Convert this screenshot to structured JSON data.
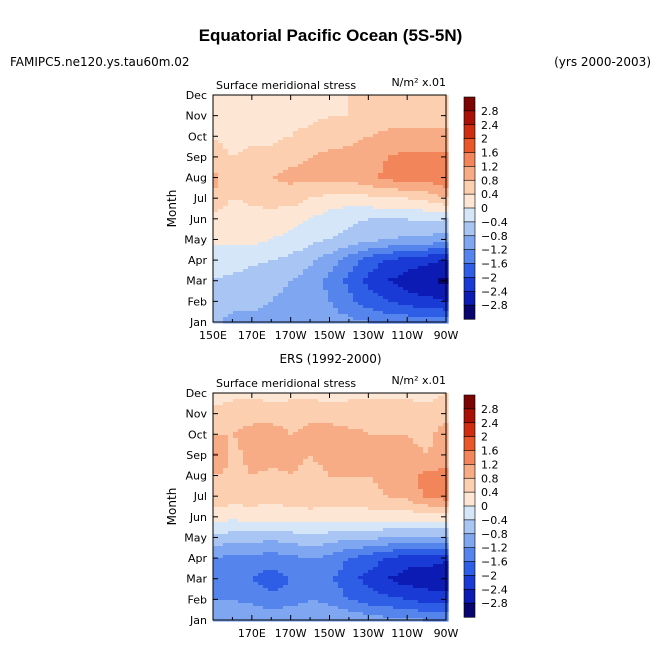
{
  "header": {
    "title": "Equatorial Pacific Ocean (5S-5N)",
    "run_name": "FAMIPC5.ne120.ys.tau60m.02",
    "year_range": "(yrs 2000-2003)"
  },
  "chart_data": [
    {
      "type": "heatmap",
      "panel_title": "",
      "left_label": "Surface meridional stress",
      "right_label": "N/m² x.01",
      "ylabel": "Month",
      "x_ticks": [
        "150E",
        "170E",
        "170W",
        "150W",
        "130W",
        "110W",
        "90W"
      ],
      "y_ticks": [
        "Jan",
        "Feb",
        "Mar",
        "Apr",
        "May",
        "Jun",
        "Jul",
        "Aug",
        "Sep",
        "Oct",
        "Nov",
        "Dec"
      ],
      "colorbar_labels": [
        "2.8",
        "2.4",
        "2",
        "1.6",
        "1.2",
        "0.8",
        "0.4",
        "0",
        "-0.4",
        "-0.8",
        "-1.2",
        "-1.6",
        "-2",
        "-2.4",
        "-2.8"
      ],
      "xlim": [
        150,
        270
      ],
      "months": [
        "Jan",
        "Feb",
        "Mar",
        "Apr",
        "May",
        "Jun",
        "Jul",
        "Aug",
        "Sep",
        "Oct",
        "Nov",
        "Dec"
      ],
      "lon": [
        150,
        160,
        170,
        180,
        190,
        200,
        210,
        220,
        230,
        240,
        250,
        260,
        270
      ],
      "values": [
        [
          -0.7,
          -0.9,
          -0.9,
          -0.9,
          -0.9,
          -1.0,
          -1.0,
          -1.1,
          -1.2,
          -1.3,
          -1.3,
          -1.4,
          -1.4
        ],
        [
          -0.6,
          -0.7,
          -0.7,
          -0.8,
          -0.9,
          -1.0,
          -1.2,
          -1.5,
          -1.8,
          -2.0,
          -2.2,
          -2.3,
          -2.4
        ],
        [
          -0.4,
          -0.5,
          -0.6,
          -0.7,
          -0.8,
          -1.0,
          -1.3,
          -1.7,
          -2.1,
          -2.4,
          -2.6,
          -2.7,
          -2.9
        ],
        [
          -0.2,
          -0.2,
          -0.3,
          -0.4,
          -0.5,
          -0.7,
          -1.0,
          -1.4,
          -1.8,
          -2.0,
          -2.2,
          -2.3,
          -2.4
        ],
        [
          0.1,
          0.1,
          0.1,
          0.0,
          -0.1,
          -0.3,
          -0.4,
          -0.5,
          -0.7,
          -0.8,
          -0.9,
          -0.9,
          -1.0
        ],
        [
          0.3,
          0.1,
          0.2,
          0.2,
          0.1,
          0.0,
          -0.2,
          -0.3,
          -0.4,
          -0.4,
          -0.4,
          -0.3,
          -0.4
        ],
        [
          0.8,
          0.4,
          0.5,
          0.6,
          0.6,
          0.4,
          0.3,
          0.2,
          0.3,
          0.4,
          0.4,
          0.5,
          0.8
        ],
        [
          0.9,
          0.6,
          0.7,
          0.8,
          0.9,
          0.9,
          0.9,
          0.9,
          1.1,
          1.3,
          1.4,
          1.4,
          1.6
        ],
        [
          0.6,
          0.4,
          0.5,
          0.5,
          0.7,
          0.8,
          0.9,
          0.9,
          1.0,
          1.2,
          1.3,
          1.3,
          1.3
        ],
        [
          0.4,
          0.2,
          0.3,
          0.3,
          0.4,
          0.5,
          0.6,
          0.7,
          0.8,
          0.9,
          0.9,
          0.9,
          0.9
        ],
        [
          0.2,
          0.2,
          0.2,
          0.3,
          0.3,
          0.3,
          0.4,
          0.4,
          0.5,
          0.6,
          0.6,
          0.6,
          0.6
        ],
        [
          0.2,
          0.2,
          0.1,
          0.2,
          0.3,
          0.3,
          0.3,
          0.4,
          0.4,
          0.4,
          0.5,
          0.5,
          0.5
        ]
      ]
    },
    {
      "type": "heatmap",
      "panel_title": "ERS (1992-2000)",
      "left_label": "Surface meridional stress",
      "right_label": "N/m² x.01",
      "ylabel": "Month",
      "x_ticks": [
        "170E",
        "170W",
        "150W",
        "130W",
        "110W",
        "90W"
      ],
      "y_ticks": [
        "Jan",
        "Feb",
        "Mar",
        "Apr",
        "May",
        "Jun",
        "Jul",
        "Aug",
        "Sep",
        "Oct",
        "Nov",
        "Dec"
      ],
      "colorbar_labels": [
        "2.8",
        "2.4",
        "2",
        "1.6",
        "1.2",
        "0.8",
        "0.4",
        "0",
        "-0.4",
        "-0.8",
        "-1.2",
        "-1.6",
        "-2",
        "-2.4",
        "-2.8"
      ],
      "xlim": [
        150,
        270
      ],
      "months": [
        "Jan",
        "Feb",
        "Mar",
        "Apr",
        "May",
        "Jun",
        "Jul",
        "Aug",
        "Sep",
        "Oct",
        "Nov",
        "Dec"
      ],
      "lon": [
        150,
        160,
        170,
        180,
        190,
        200,
        210,
        220,
        230,
        240,
        250,
        260,
        270
      ],
      "values": [
        [
          -1.0,
          -0.8,
          -0.9,
          -0.9,
          -0.8,
          -0.8,
          -0.9,
          -0.9,
          -1.0,
          -1.1,
          -1.1,
          -1.2,
          -1.2
        ],
        [
          -1.2,
          -1.2,
          -1.3,
          -1.5,
          -1.4,
          -1.2,
          -1.3,
          -1.6,
          -1.8,
          -1.9,
          -2.0,
          -2.2,
          -2.2
        ],
        [
          -1.4,
          -1.5,
          -1.6,
          -1.8,
          -1.6,
          -1.4,
          -1.5,
          -1.9,
          -2.1,
          -2.4,
          -2.6,
          -2.6,
          -2.8
        ],
        [
          -1.2,
          -1.3,
          -1.3,
          -1.4,
          -1.3,
          -1.2,
          -1.3,
          -1.6,
          -1.8,
          -2.0,
          -2.2,
          -2.2,
          -2.3
        ],
        [
          -0.5,
          -0.6,
          -0.6,
          -0.7,
          -0.6,
          -0.5,
          -0.6,
          -0.7,
          -0.7,
          -0.8,
          -0.8,
          -0.8,
          -0.8
        ],
        [
          0.2,
          0.1,
          0.2,
          0.2,
          0.2,
          0.2,
          0.2,
          0.2,
          0.2,
          0.2,
          0.2,
          0.2,
          0.2
        ],
        [
          0.7,
          0.6,
          0.6,
          0.5,
          0.6,
          0.7,
          0.6,
          0.6,
          0.7,
          0.8,
          0.9,
          1.3,
          1.4
        ],
        [
          0.8,
          0.7,
          0.8,
          0.7,
          0.8,
          0.7,
          0.8,
          0.8,
          0.8,
          0.9,
          1.1,
          1.3,
          1.4
        ],
        [
          1.3,
          0.7,
          0.9,
          1.0,
          0.9,
          0.8,
          0.9,
          0.9,
          0.8,
          0.9,
          0.9,
          0.8,
          0.9
        ],
        [
          0.8,
          0.8,
          0.9,
          1.0,
          0.8,
          0.9,
          1.0,
          0.9,
          0.8,
          0.8,
          0.8,
          0.7,
          1.0
        ],
        [
          0.7,
          0.6,
          0.7,
          0.6,
          0.6,
          0.7,
          0.6,
          0.6,
          0.7,
          0.6,
          0.6,
          0.5,
          0.6
        ],
        [
          0.0,
          0.3,
          0.3,
          0.2,
          0.3,
          0.3,
          0.2,
          0.3,
          0.3,
          0.3,
          0.3,
          0.3,
          0.4
        ]
      ]
    }
  ],
  "palette": {
    "levels": [
      -2.8,
      -2.4,
      -2.0,
      -1.6,
      -1.2,
      -0.8,
      -0.4,
      0,
      0.4,
      0.8,
      1.2,
      1.6,
      2.0,
      2.4,
      2.8
    ],
    "colors": [
      "#08056e",
      "#0b1bb3",
      "#1a3ad6",
      "#2f5ee6",
      "#5584ec",
      "#7fa6f0",
      "#a8c5f4",
      "#d6e6f9",
      "#fde6d3",
      "#fbcfb0",
      "#f8ac85",
      "#f2855a",
      "#e8582b",
      "#cf2d10",
      "#a81106",
      "#7a0503"
    ]
  }
}
